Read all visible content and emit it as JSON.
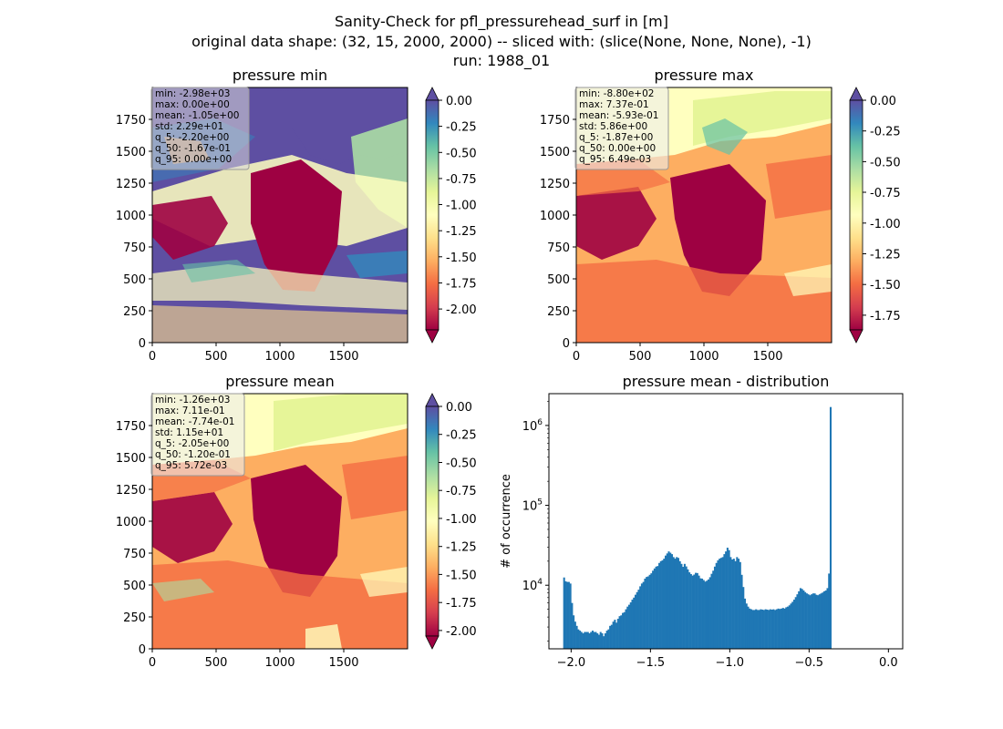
{
  "figure": {
    "title_lines": [
      "Sanity-Check for pfl_pressurehead_surf in [m]",
      "original data shape: (32, 15, 2000, 2000) -- sliced with: (slice(None, None, None), -1)",
      "run: 1988_01"
    ]
  },
  "colors": {
    "spectral_low": "#9e0142",
    "spectral_mid": "#ffffbf",
    "spectral_high": "#5e4fa2",
    "hist_bar": "#1f77b4"
  },
  "chart_data": [
    {
      "type": "heatmap",
      "title": "pressure min",
      "x_ticks": [
        "0",
        "500",
        "1000",
        "1500"
      ],
      "y_ticks": [
        "0",
        "250",
        "500",
        "750",
        "1000",
        "1250",
        "1500",
        "1750"
      ],
      "colorbar": {
        "ticks": [
          "0.00",
          "-0.25",
          "-0.50",
          "-0.75",
          "-1.00",
          "-1.25",
          "-1.50",
          "-1.75",
          "-2.00"
        ],
        "range": [
          -2.2,
          0.0
        ],
        "extend": "both",
        "colormap": "Spectral"
      },
      "stats": [
        "min: -2.98e+03",
        "max: 0.00e+00",
        "mean: -1.05e+00",
        "std: 2.29e+01",
        "q_5: -2.20e+00",
        "q_50: -1.67e-01",
        "q_95: 0.00e+00"
      ]
    },
    {
      "type": "heatmap",
      "title": "pressure max",
      "x_ticks": [
        "0",
        "500",
        "1000",
        "1500"
      ],
      "y_ticks": [
        "0",
        "250",
        "500",
        "750",
        "1000",
        "1250",
        "1500",
        "1750"
      ],
      "colorbar": {
        "ticks": [
          "0.00",
          "-0.25",
          "-0.50",
          "-0.75",
          "-1.00",
          "-1.25",
          "-1.50",
          "-1.75"
        ],
        "range": [
          -1.87,
          0.0
        ],
        "extend": "both",
        "colormap": "Spectral"
      },
      "stats": [
        "min: -8.80e+02",
        "max: 7.37e-01",
        "mean: -5.93e-01",
        "std: 5.86e+00",
        "q_5: -1.87e+00",
        "q_50: 0.00e+00",
        "q_95: 6.49e-03"
      ]
    },
    {
      "type": "heatmap",
      "title": "pressure mean",
      "x_ticks": [
        "0",
        "500",
        "1000",
        "1500"
      ],
      "y_ticks": [
        "0",
        "250",
        "500",
        "750",
        "1000",
        "1250",
        "1500",
        "1750"
      ],
      "colorbar": {
        "ticks": [
          "0.00",
          "-0.25",
          "-0.50",
          "-0.75",
          "-1.00",
          "-1.25",
          "-1.50",
          "-1.75",
          "-2.00"
        ],
        "range": [
          -2.05,
          0.0
        ],
        "extend": "both",
        "colormap": "Spectral"
      },
      "stats": [
        "min: -1.26e+03",
        "max: 7.11e-01",
        "mean: -7.74e-01",
        "std: 1.15e+01",
        "q_5: -2.05e+00",
        "q_50: -1.20e-01",
        "q_95: 5.72e-03"
      ]
    },
    {
      "type": "bar",
      "title": "pressure mean - distribution",
      "ylabel": "# of occurrence",
      "x_ticks": [
        "−2.0",
        "−1.5",
        "−1.0",
        "−0.5",
        "0.0"
      ],
      "y_ticks": [
        "10",
        "10",
        "10"
      ],
      "y_tick_exponents": [
        "4",
        "5",
        "6"
      ],
      "y_scale": "log",
      "xlim": [
        -2.14,
        0.09
      ],
      "ylim": [
        1600,
        2500000
      ],
      "bins": {
        "start": -2.05,
        "width": 0.01
      },
      "counts": [
        12500,
        11200,
        11000,
        11000,
        10500,
        6000,
        4200,
        3500,
        3100,
        2800,
        2700,
        2600,
        2500,
        2600,
        2600,
        2600,
        2500,
        2600,
        2700,
        2600,
        2600,
        2500,
        2400,
        2600,
        2500,
        2300,
        2500,
        2700,
        2800,
        3100,
        3200,
        3500,
        3700,
        3400,
        3800,
        4100,
        4200,
        4500,
        4600,
        5000,
        5400,
        5700,
        6100,
        6600,
        7000,
        7600,
        8200,
        8800,
        9700,
        10500,
        11000,
        12100,
        12700,
        12900,
        13500,
        14100,
        15200,
        16200,
        17100,
        17400,
        19000,
        20000,
        20500,
        21500,
        23500,
        25000,
        26500,
        25500,
        24500,
        22500,
        21500,
        22500,
        22000,
        20000,
        18500,
        17000,
        18500,
        17200,
        15800,
        14500,
        13800,
        13200,
        13600,
        14300,
        14200,
        13200,
        12200,
        12100,
        11600,
        11100,
        11400,
        11800,
        12600,
        13900,
        15200,
        17100,
        19000,
        20500,
        21500,
        22000,
        22500,
        24500,
        26500,
        29500,
        27500,
        22500,
        21000,
        21500,
        20000,
        22500,
        21500,
        19500,
        13500,
        9500,
        6800,
        5900,
        5400,
        5100,
        5000,
        4900,
        4900,
        5000,
        4900,
        4900,
        5000,
        4950,
        4900,
        5000,
        4950,
        4900,
        5000,
        4950,
        5000,
        4900,
        5000,
        5100,
        5050,
        5100,
        5200,
        5100,
        5300,
        5400,
        5600,
        5900,
        6200,
        6600,
        7100,
        7700,
        8400,
        9200,
        9000,
        8600,
        8200,
        7900,
        7700,
        7500,
        7700,
        7900,
        7900,
        7600,
        7500,
        7700,
        7900,
        8100,
        8400,
        8600,
        9200,
        14000,
        1700000
      ]
    }
  ]
}
